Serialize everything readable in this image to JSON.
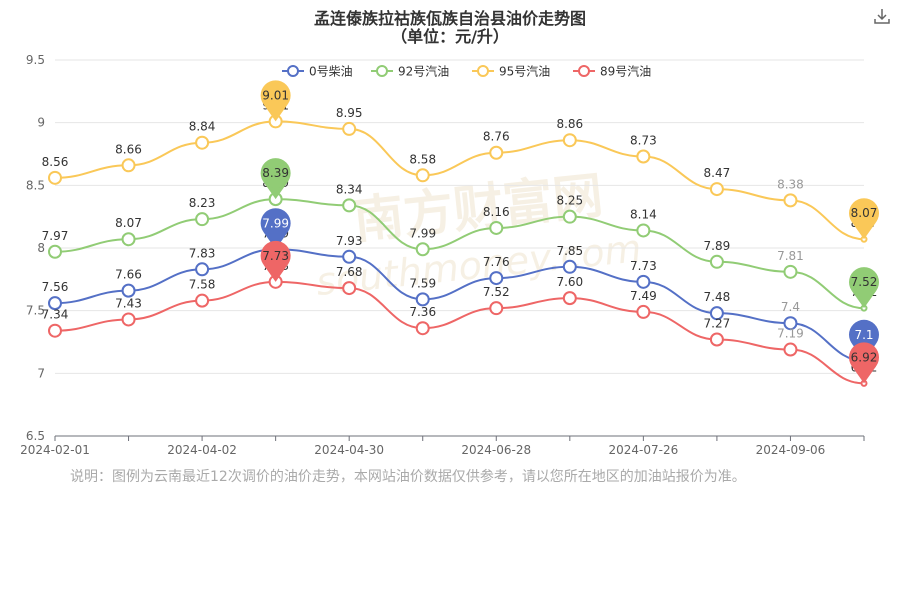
{
  "title": "孟连傣族拉祜族佤族自治县油价走势图",
  "subtitle": "（单位：元/升）",
  "watermark": "南方财富网",
  "watermark_url": "southmoney.com",
  "note": "说明：图例为云南最近12次调价的油价走势，本网站油价数据仅供参考，请以您所在地区的加油站报价为准。",
  "toolbar": {
    "download_icon": "download-icon"
  },
  "chart_data": {
    "type": "line",
    "title": "孟连傣族拉祜族佤族自治县油价走势图",
    "subtitle": "（单位：元/升）",
    "x_tick_labels": [
      "2024-02-01",
      "2024-04-02",
      "2024-04-30",
      "2024-06-28",
      "2024-07-26",
      "2024-09-06"
    ],
    "x_tick_positions": [
      0,
      2,
      4,
      6,
      8,
      10
    ],
    "point_count": 12,
    "ylim": [
      6.5,
      9.5
    ],
    "y_ticks": [
      6.5,
      7,
      7.5,
      8,
      8.5,
      9,
      9.5
    ],
    "grid": true,
    "legend_position": "top-center",
    "series": [
      {
        "name": "0号柴油",
        "color": "#5470c6",
        "values": [
          7.56,
          7.66,
          7.83,
          7.99,
          7.93,
          7.59,
          7.76,
          7.85,
          7.73,
          7.48,
          7.4,
          7.1
        ],
        "labels": [
          "7.56",
          "7.66",
          "7.83",
          "7.99",
          "7.93",
          "7.59",
          "7.76",
          "7.85",
          "7.73",
          "7.48",
          "7.4",
          "7.1"
        ]
      },
      {
        "name": "92号汽油",
        "color": "#91cc75",
        "values": [
          7.97,
          8.07,
          8.23,
          8.39,
          8.34,
          7.99,
          8.16,
          8.25,
          8.14,
          7.89,
          7.81,
          7.52
        ],
        "labels": [
          "7.97",
          "8.07",
          "8.23",
          "8.39",
          "8.34",
          "7.99",
          "8.16",
          "8.25",
          "8.14",
          "7.89",
          "7.81",
          "7.52"
        ]
      },
      {
        "name": "95号汽油",
        "color": "#fac858",
        "values": [
          8.56,
          8.66,
          8.84,
          9.01,
          8.95,
          8.58,
          8.76,
          8.86,
          8.73,
          8.47,
          8.38,
          8.07
        ],
        "labels": [
          "8.56",
          "8.66",
          "8.84",
          "9.01",
          "8.95",
          "8.58",
          "8.76",
          "8.86",
          "8.73",
          "8.47",
          "8.38",
          "8.07"
        ]
      },
      {
        "name": "89号汽油",
        "color": "#ee6666",
        "values": [
          7.34,
          7.43,
          7.58,
          7.73,
          7.68,
          7.36,
          7.52,
          7.6,
          7.49,
          7.27,
          7.19,
          6.92
        ],
        "labels": [
          "7.34",
          "7.43",
          "7.58",
          "7.73",
          "7.68",
          "7.36",
          "7.52",
          "7.60",
          "7.49",
          "7.27",
          "7.19",
          "6.92"
        ]
      }
    ],
    "highlights": [
      {
        "series": 2,
        "point": 3
      },
      {
        "series": 1,
        "point": 3
      },
      {
        "series": 0,
        "point": 3
      },
      {
        "series": 3,
        "point": 3
      },
      {
        "series": 2,
        "point": 11
      },
      {
        "series": 1,
        "point": 11
      },
      {
        "series": 0,
        "point": 11
      },
      {
        "series": 3,
        "point": 11
      }
    ]
  }
}
